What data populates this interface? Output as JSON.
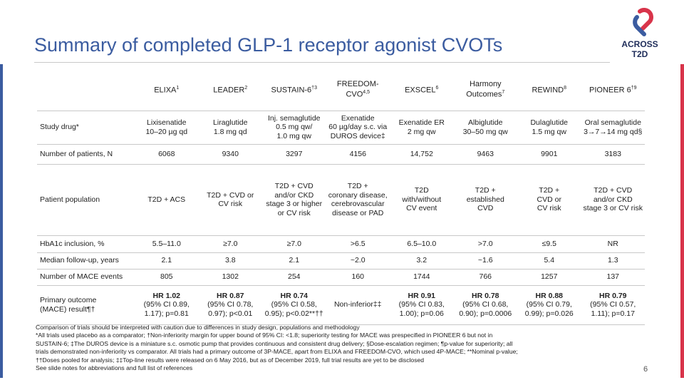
{
  "header": {
    "title": "Summary of completed GLP-1 receptor agonist CVOTs"
  },
  "logo": {
    "line1": "ACROSS",
    "line2": "T2D"
  },
  "table": {
    "columns": [
      {
        "lines": [
          "ELIXA"
        ],
        "sup": "1"
      },
      {
        "lines": [
          "LEADER"
        ],
        "sup": "2"
      },
      {
        "lines": [
          "SUSTAIN-6"
        ],
        "sup": "†3"
      },
      {
        "lines": [
          "FREEDOM-",
          "CVO"
        ],
        "sup": "4,5"
      },
      {
        "lines": [
          "EXSCEL"
        ],
        "sup": "6"
      },
      {
        "lines": [
          "Harmony",
          "Outcomes"
        ],
        "sup": "7"
      },
      {
        "lines": [
          "REWIND"
        ],
        "sup": "8"
      },
      {
        "lines": [
          "PIONEER 6"
        ],
        "sup": "†9"
      }
    ],
    "rows": [
      {
        "label": [
          "Study drug*"
        ],
        "cells": [
          [
            "Lixisenatide",
            "10–20 µg qd"
          ],
          [
            "Liraglutide",
            "1.8 mg qd"
          ],
          [
            "Inj. semaglutide",
            "0.5 mg qw/",
            "1.0 mg qw"
          ],
          [
            "Exenatide",
            "60 µg/day s.c. via",
            "DUROS device‡"
          ],
          [
            "Exenatide ER",
            "2 mg qw"
          ],
          [
            "Albiglutide",
            "30–50 mg qw"
          ],
          [
            "Dulaglutide",
            "1.5 mg qw"
          ],
          [
            "Oral semaglutide",
            "3→7→14 mg qd§"
          ]
        ]
      },
      {
        "label": [
          "Number of patients, N"
        ],
        "cells": [
          [
            "6068"
          ],
          [
            "9340"
          ],
          [
            "3297"
          ],
          [
            "4156"
          ],
          [
            "14,752"
          ],
          [
            "9463"
          ],
          [
            "9901"
          ],
          [
            "3183"
          ]
        ]
      },
      {
        "label": [
          "Patient population"
        ],
        "cells": [
          [
            "T2D + ACS"
          ],
          [
            "T2D + CVD or",
            "CV risk"
          ],
          [
            "T2D + CVD",
            "and/or CKD",
            "stage 3 or higher",
            "or CV risk"
          ],
          [
            "T2D +",
            "coronary disease,",
            "cerebrovascular",
            "disease or PAD"
          ],
          [
            "T2D",
            "with/without",
            "CV event"
          ],
          [
            "T2D +",
            "established",
            "CVD"
          ],
          [
            "T2D +",
            "CVD or",
            "CV risk"
          ],
          [
            "T2D + CVD",
            "and/or CKD",
            "stage 3 or CV risk"
          ]
        ]
      },
      {
        "label": [
          "HbA1c inclusion, %"
        ],
        "cells": [
          [
            "5.5–11.0"
          ],
          [
            "≥7.0"
          ],
          [
            "≥7.0"
          ],
          [
            ">6.5"
          ],
          [
            "6.5–10.0"
          ],
          [
            ">7.0"
          ],
          [
            "≤9.5"
          ],
          [
            "NR"
          ]
        ]
      },
      {
        "label": [
          "Median follow-up, years"
        ],
        "cells": [
          [
            "2.1"
          ],
          [
            "3.8"
          ],
          [
            "2.1"
          ],
          [
            "~2.0"
          ],
          [
            "3.2"
          ],
          [
            "~1.6"
          ],
          [
            "5.4"
          ],
          [
            "1.3"
          ]
        ]
      },
      {
        "label": [
          "Number of MACE events"
        ],
        "cells": [
          [
            "805"
          ],
          [
            "1302"
          ],
          [
            "254"
          ],
          [
            "160"
          ],
          [
            "1744"
          ],
          [
            "766"
          ],
          [
            "1257"
          ],
          [
            "137"
          ]
        ]
      },
      {
        "label": [
          "Primary outcome",
          "(MACE) result¶†"
        ],
        "cells": [
          [
            "HR 1.02",
            "(95% CI 0.89,",
            "1.17); p=0.81"
          ],
          [
            "HR 0.87",
            "(95% CI 0.78,",
            "0.97); p<0.01"
          ],
          [
            "HR 0.74",
            "(95% CI 0.58,",
            "0.95); p<0.02**††"
          ],
          [
            "Non-inferior‡‡"
          ],
          [
            "HR 0.91",
            "(95% CI 0.83,",
            "1.00); p=0.06"
          ],
          [
            "HR 0.78",
            "(95% CI 0.68,",
            "0.90); p=0.0006"
          ],
          [
            "HR 0.88",
            "(95% CI 0.79,",
            "0.99); p=0.026"
          ],
          [
            "HR 0.79",
            "(95% CI 0.57,",
            "1.11); p=0.17"
          ]
        ]
      }
    ]
  },
  "footnotes": {
    "lines": [
      "Comparison of trials should be interpreted with caution due to differences in study design, populations and methodology",
      "*All trials used placebo as a comparator; †Non-inferiority margin for upper bound of 95% CI: <1.8; superiority testing for MACE was prespecified in PIONEER 6 but not in",
      "SUSTAIN-6; ‡The DUROS device is a miniature s.c. osmotic pump that provides continuous and consistent drug delivery; §Dose-escalation regimen; ¶p-value for superiority; all",
      "trials demonstrated non-inferiority vs comparator. All trials had a primary outcome of 3P-MACE, apart from ELIXA and FREEDOM-CVO, which used 4P-MACE; **Nominal p-value;",
      "††Doses pooled for analysis; ‡‡Top-line results were released on 6 May 2016, but as of December 2019, full trial results are yet to be disclosed",
      "See slide notes for abbreviations and full list of references"
    ]
  },
  "page_number": "6"
}
